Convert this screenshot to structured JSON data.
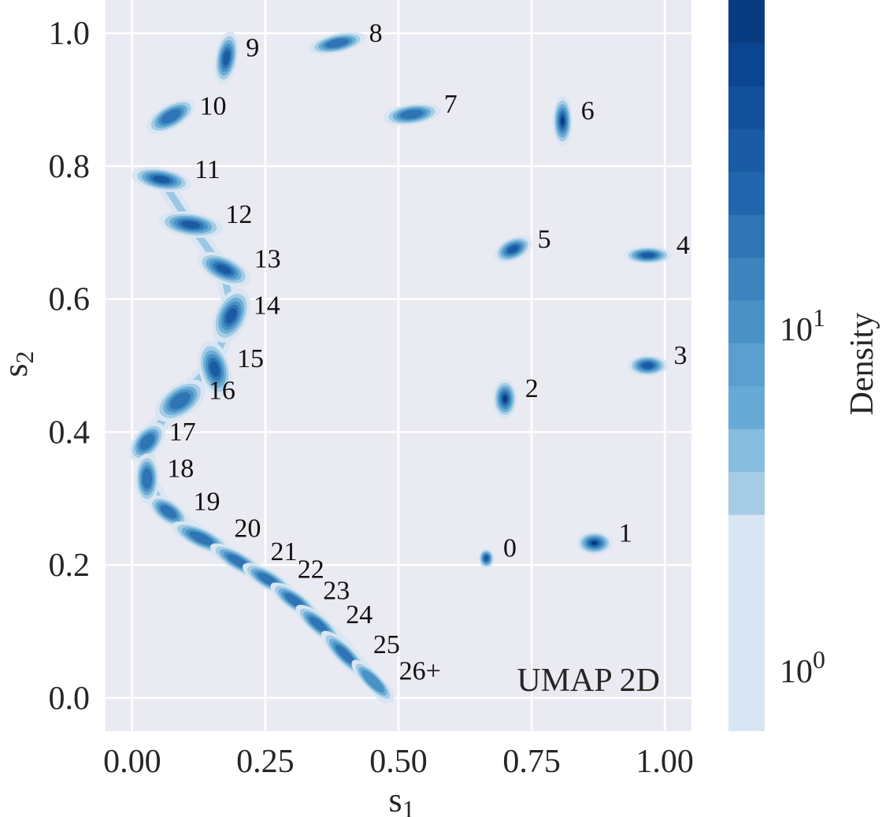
{
  "chart_data": {
    "type": "heatmap",
    "subtype": "kde-density-contours",
    "annotation": "UMAP 2D",
    "xlabel": "s",
    "xlabel_sub": "1",
    "ylabel": "s",
    "ylabel_sub": "2",
    "xlim": [
      -0.05,
      1.05
    ],
    "ylim": [
      -0.05,
      1.05
    ],
    "x_ticks": [
      0.0,
      0.25,
      0.5,
      0.75,
      1.0
    ],
    "x_tick_labels": [
      "0.00",
      "0.25",
      "0.50",
      "0.75",
      "1.00"
    ],
    "y_ticks": [
      0.0,
      0.2,
      0.4,
      0.6,
      0.8,
      1.0
    ],
    "y_tick_labels": [
      "0.0",
      "0.2",
      "0.4",
      "0.6",
      "0.8",
      "1.0"
    ],
    "grid": true,
    "colorbar": {
      "label": "Density",
      "scale": "log",
      "ticks": [
        {
          "base": "10",
          "exp": "0",
          "value": 1
        },
        {
          "base": "10",
          "exp": "1",
          "value": 10
        }
      ],
      "colors": [
        "#d8e6f3",
        "#a6cbe4",
        "#86bcde",
        "#68aad6",
        "#5b9fd0",
        "#4a92c6",
        "#3d84bf",
        "#2f75b5",
        "#2166ac",
        "#1a5ba3",
        "#13509b",
        "#0b4590",
        "#083b80"
      ]
    },
    "clusters": [
      {
        "label": "0",
        "x": 0.665,
        "y": 0.21,
        "rx": 0.011,
        "ry": 0.011,
        "angle": 0,
        "intensity": 0.9
      },
      {
        "label": "1",
        "x": 0.868,
        "y": 0.233,
        "rx": 0.025,
        "ry": 0.013,
        "angle": 0,
        "intensity": 1.0
      },
      {
        "label": "2",
        "x": 0.7,
        "y": 0.45,
        "rx": 0.017,
        "ry": 0.022,
        "angle": 0,
        "intensity": 0.95
      },
      {
        "label": "3",
        "x": 0.968,
        "y": 0.5,
        "rx": 0.028,
        "ry": 0.012,
        "angle": 0,
        "intensity": 0.85
      },
      {
        "label": "4",
        "x": 0.968,
        "y": 0.666,
        "rx": 0.033,
        "ry": 0.01,
        "angle": 0,
        "intensity": 0.85
      },
      {
        "label": "5",
        "x": 0.715,
        "y": 0.675,
        "rx": 0.028,
        "ry": 0.013,
        "angle": -25,
        "intensity": 0.8
      },
      {
        "label": "6",
        "x": 0.808,
        "y": 0.868,
        "rx": 0.014,
        "ry": 0.028,
        "angle": 0,
        "intensity": 0.95
      },
      {
        "label": "7",
        "x": 0.525,
        "y": 0.878,
        "rx": 0.04,
        "ry": 0.012,
        "angle": -8,
        "intensity": 0.75
      },
      {
        "label": "8",
        "x": 0.385,
        "y": 0.985,
        "rx": 0.04,
        "ry": 0.011,
        "angle": -12,
        "intensity": 0.75
      },
      {
        "label": "9",
        "x": 0.177,
        "y": 0.963,
        "rx": 0.016,
        "ry": 0.03,
        "angle": 10,
        "intensity": 0.8
      },
      {
        "label": "10",
        "x": 0.073,
        "y": 0.875,
        "rx": 0.038,
        "ry": 0.014,
        "angle": -30,
        "intensity": 0.75
      },
      {
        "label": "11",
        "x": 0.055,
        "y": 0.78,
        "rx": 0.042,
        "ry": 0.013,
        "angle": 10,
        "intensity": 0.8
      },
      {
        "label": "12",
        "x": 0.11,
        "y": 0.712,
        "rx": 0.045,
        "ry": 0.014,
        "angle": 8,
        "intensity": 0.8
      },
      {
        "label": "13",
        "x": 0.172,
        "y": 0.645,
        "rx": 0.04,
        "ry": 0.015,
        "angle": 25,
        "intensity": 0.8
      },
      {
        "label": "14",
        "x": 0.186,
        "y": 0.575,
        "rx": 0.023,
        "ry": 0.032,
        "angle": 25,
        "intensity": 0.8
      },
      {
        "label": "15",
        "x": 0.155,
        "y": 0.495,
        "rx": 0.022,
        "ry": 0.032,
        "angle": -15,
        "intensity": 0.8
      },
      {
        "label": "16",
        "x": 0.09,
        "y": 0.447,
        "rx": 0.04,
        "ry": 0.018,
        "angle": -35,
        "intensity": 0.7
      },
      {
        "label": "17",
        "x": 0.028,
        "y": 0.385,
        "rx": 0.032,
        "ry": 0.015,
        "angle": -50,
        "intensity": 0.7
      },
      {
        "label": "18",
        "x": 0.028,
        "y": 0.33,
        "rx": 0.017,
        "ry": 0.028,
        "angle": 0,
        "intensity": 0.7
      },
      {
        "label": "19",
        "x": 0.068,
        "y": 0.28,
        "rx": 0.032,
        "ry": 0.013,
        "angle": 35,
        "intensity": 0.7
      },
      {
        "label": "20",
        "x": 0.13,
        "y": 0.24,
        "rx": 0.045,
        "ry": 0.012,
        "angle": 25,
        "intensity": 0.7
      },
      {
        "label": "21",
        "x": 0.2,
        "y": 0.205,
        "rx": 0.045,
        "ry": 0.011,
        "angle": 30,
        "intensity": 0.7
      },
      {
        "label": "22",
        "x": 0.255,
        "y": 0.178,
        "rx": 0.04,
        "ry": 0.011,
        "angle": 30,
        "intensity": 0.7
      },
      {
        "label": "23",
        "x": 0.305,
        "y": 0.146,
        "rx": 0.04,
        "ry": 0.011,
        "angle": 35,
        "intensity": 0.7
      },
      {
        "label": "24",
        "x": 0.35,
        "y": 0.11,
        "rx": 0.04,
        "ry": 0.011,
        "angle": 40,
        "intensity": 0.7
      },
      {
        "label": "25",
        "x": 0.4,
        "y": 0.065,
        "rx": 0.045,
        "ry": 0.011,
        "angle": 45,
        "intensity": 0.7
      },
      {
        "label": "26+",
        "x": 0.452,
        "y": 0.025,
        "rx": 0.04,
        "ry": 0.01,
        "angle": 45,
        "intensity": 0.6
      }
    ],
    "trail": [
      [
        0.475,
        0.005
      ],
      [
        0.43,
        0.045
      ],
      [
        0.38,
        0.09
      ],
      [
        0.33,
        0.13
      ],
      [
        0.28,
        0.165
      ],
      [
        0.23,
        0.19
      ],
      [
        0.17,
        0.22
      ],
      [
        0.11,
        0.255
      ],
      [
        0.06,
        0.285
      ],
      [
        0.035,
        0.32
      ],
      [
        0.028,
        0.36
      ],
      [
        0.02,
        0.385
      ],
      [
        0.05,
        0.41
      ],
      [
        0.1,
        0.46
      ],
      [
        0.15,
        0.5
      ],
      [
        0.19,
        0.575
      ],
      [
        0.17,
        0.645
      ],
      [
        0.11,
        0.712
      ],
      [
        0.055,
        0.78
      ]
    ]
  }
}
